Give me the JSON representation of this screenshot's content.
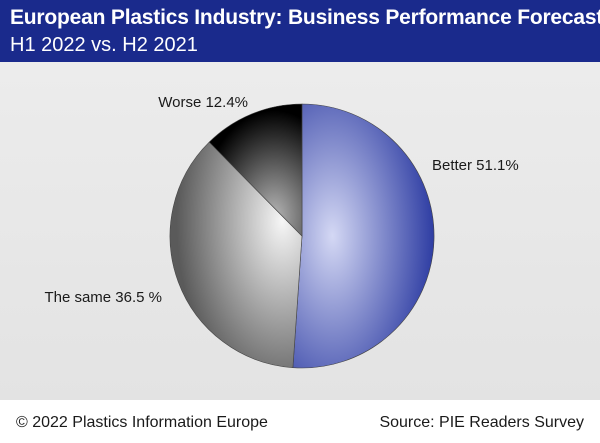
{
  "header": {
    "title": "European Plastics Industry: Business Performance Forecast",
    "subtitle": "H1 2022 vs. H2 2021"
  },
  "chart_data": {
    "type": "pie",
    "title": "European Plastics Industry: Business Performance Forecast",
    "subtitle": "H1 2022 vs. H2 2021",
    "start_angle_deg": 0,
    "direction": "clockwise",
    "slices": [
      {
        "label": "Better 51.1%",
        "value": 51.1,
        "color": "#1c2c9a",
        "highlight": "#d4d8f4"
      },
      {
        "label": "The same 36.5 %",
        "value": 36.5,
        "color": "#5a5a5a",
        "highlight": "#f6f6f6"
      },
      {
        "label": "Worse 12.4%",
        "value": 12.4,
        "color": "#000000",
        "highlight": "#b5b5b5"
      }
    ]
  },
  "footer": {
    "copyright": "© 2022 Plastics Information Europe",
    "source": "Source: PIE Readers Survey"
  },
  "colors": {
    "header_background": "#1a2a8c",
    "plot_background": "#e6e6e6"
  }
}
